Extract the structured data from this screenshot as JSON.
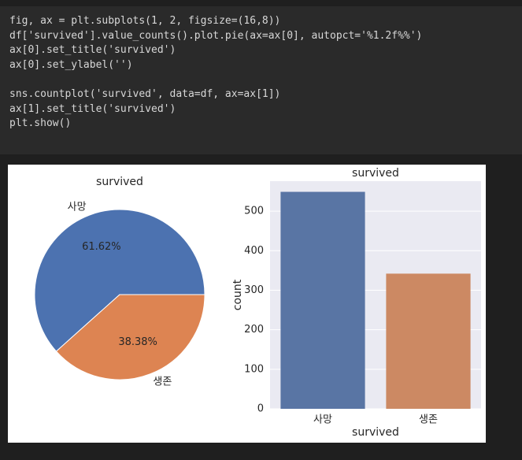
{
  "code": {
    "blocks": [
      [
        "fig, ax = plt.subplots(1, 2, figsize=(16,8))",
        "df['survived'].value_counts().plot.pie(ax=ax[0], autopct='%1.2f%%')",
        "ax[0].set_title('survived')",
        "ax[0].set_ylabel('')"
      ],
      [
        "sns.countplot('survived', data=df, ax=ax[1])",
        "ax[1].set_title('survived')",
        "plt.show()"
      ]
    ]
  },
  "chart_data": [
    {
      "type": "pie",
      "title": "survived",
      "categories": [
        "사망",
        "생존"
      ],
      "values": [
        61.62,
        38.38
      ],
      "value_labels": [
        "61.62%",
        "38.38%"
      ],
      "colors": [
        "#4c72b0",
        "#dd8452"
      ]
    },
    {
      "type": "bar",
      "title": "survived",
      "xlabel": "survived",
      "ylabel": "count",
      "categories": [
        "사망",
        "생존"
      ],
      "values": [
        549,
        342
      ],
      "colors": [
        "#5975a4",
        "#cc8963"
      ],
      "ylim": [
        0,
        576
      ],
      "yticks": [
        0,
        100,
        200,
        300,
        400,
        500
      ],
      "grid": true
    }
  ]
}
